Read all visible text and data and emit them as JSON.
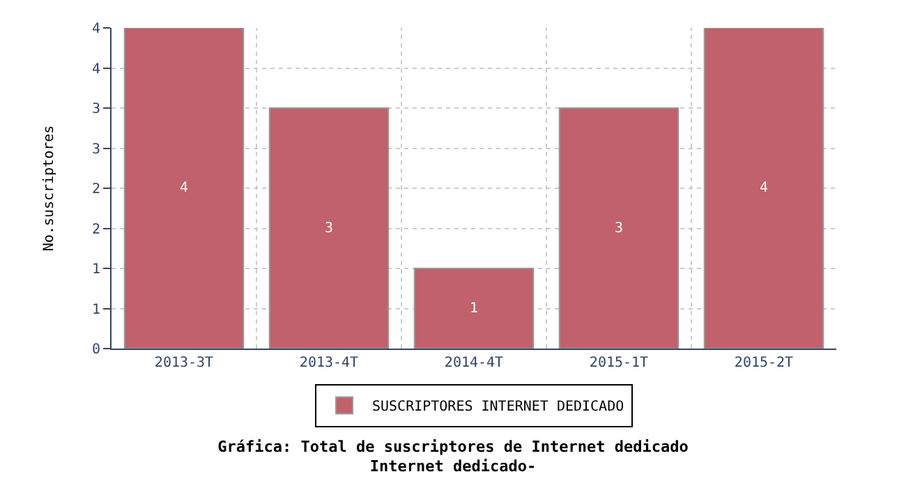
{
  "chart_data": {
    "type": "bar",
    "title": "Gráfica: Total de suscriptores de Internet dedicado\nInternet dedicado-",
    "ylabel": "No.suscriptores",
    "categories": [
      "2013-3T",
      "2013-4T",
      "2014-4T",
      "2015-1T",
      "2015-2T"
    ],
    "series": [
      {
        "name": "SUSCRIPTORES INTERNET DEDICADO",
        "color": "#c0616b",
        "values": [
          4,
          3,
          1,
          3,
          4
        ]
      }
    ],
    "ylim": [
      0,
      4
    ],
    "yticks": [
      0,
      {
        "value": 0.5,
        "label": "1"
      },
      1,
      {
        "value": 1.5,
        "label": "2"
      },
      2,
      {
        "value": 2.5,
        "label": "3"
      },
      3,
      {
        "value": 3.5,
        "label": "4"
      },
      4
    ],
    "grid": true,
    "legend": "bottom",
    "data_labels": true
  }
}
